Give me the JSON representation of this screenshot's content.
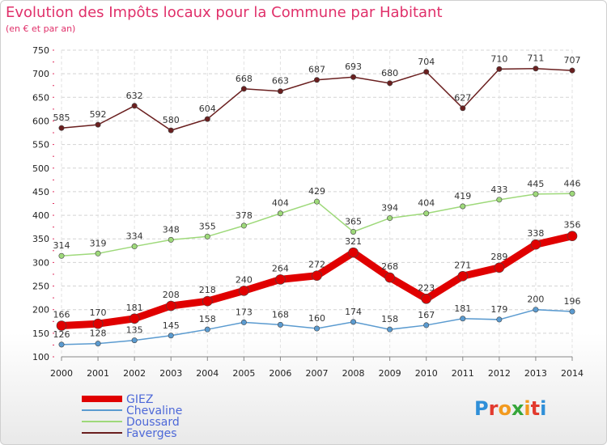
{
  "title": "Evolution des Impôts locaux pour la Commune par Habitant",
  "subtitle": "(en € et par an)",
  "logo": {
    "text": "Proxiti",
    "colors": [
      "#2f8fd8",
      "#e23a2e",
      "#f29a1f",
      "#36a63a",
      "#f29a1f",
      "#e23a2e",
      "#2f8fd8"
    ]
  },
  "chart_data": {
    "type": "line",
    "x": [
      2000,
      2001,
      2002,
      2003,
      2004,
      2005,
      2006,
      2007,
      2008,
      2009,
      2010,
      2011,
      2012,
      2013,
      2014
    ],
    "ylim": [
      100,
      750
    ],
    "yticks": [
      100,
      150,
      200,
      250,
      300,
      350,
      400,
      450,
      500,
      550,
      600,
      650,
      700,
      750
    ],
    "grid": true,
    "legend_position": "bottom-left",
    "series": [
      {
        "name": "GIEZ",
        "color": "#e00000",
        "width": 9,
        "values": [
          166,
          170,
          181,
          208,
          218,
          240,
          264,
          272,
          321,
          268,
          223,
          271,
          289,
          338,
          356
        ]
      },
      {
        "name": "Chevaline",
        "color": "#5b9bd0",
        "width": 1.5,
        "values": [
          126,
          128,
          135,
          145,
          158,
          173,
          168,
          160,
          174,
          158,
          167,
          181,
          179,
          200,
          196
        ]
      },
      {
        "name": "Doussard",
        "color": "#9ed97a",
        "width": 1.5,
        "values": [
          314,
          319,
          334,
          348,
          355,
          378,
          404,
          429,
          365,
          394,
          404,
          419,
          433,
          445,
          446
        ]
      },
      {
        "name": "Faverges",
        "color": "#6a1f1f",
        "width": 1.5,
        "values": [
          585,
          592,
          632,
          580,
          604,
          668,
          663,
          687,
          693,
          680,
          704,
          627,
          710,
          711,
          707
        ]
      }
    ]
  }
}
